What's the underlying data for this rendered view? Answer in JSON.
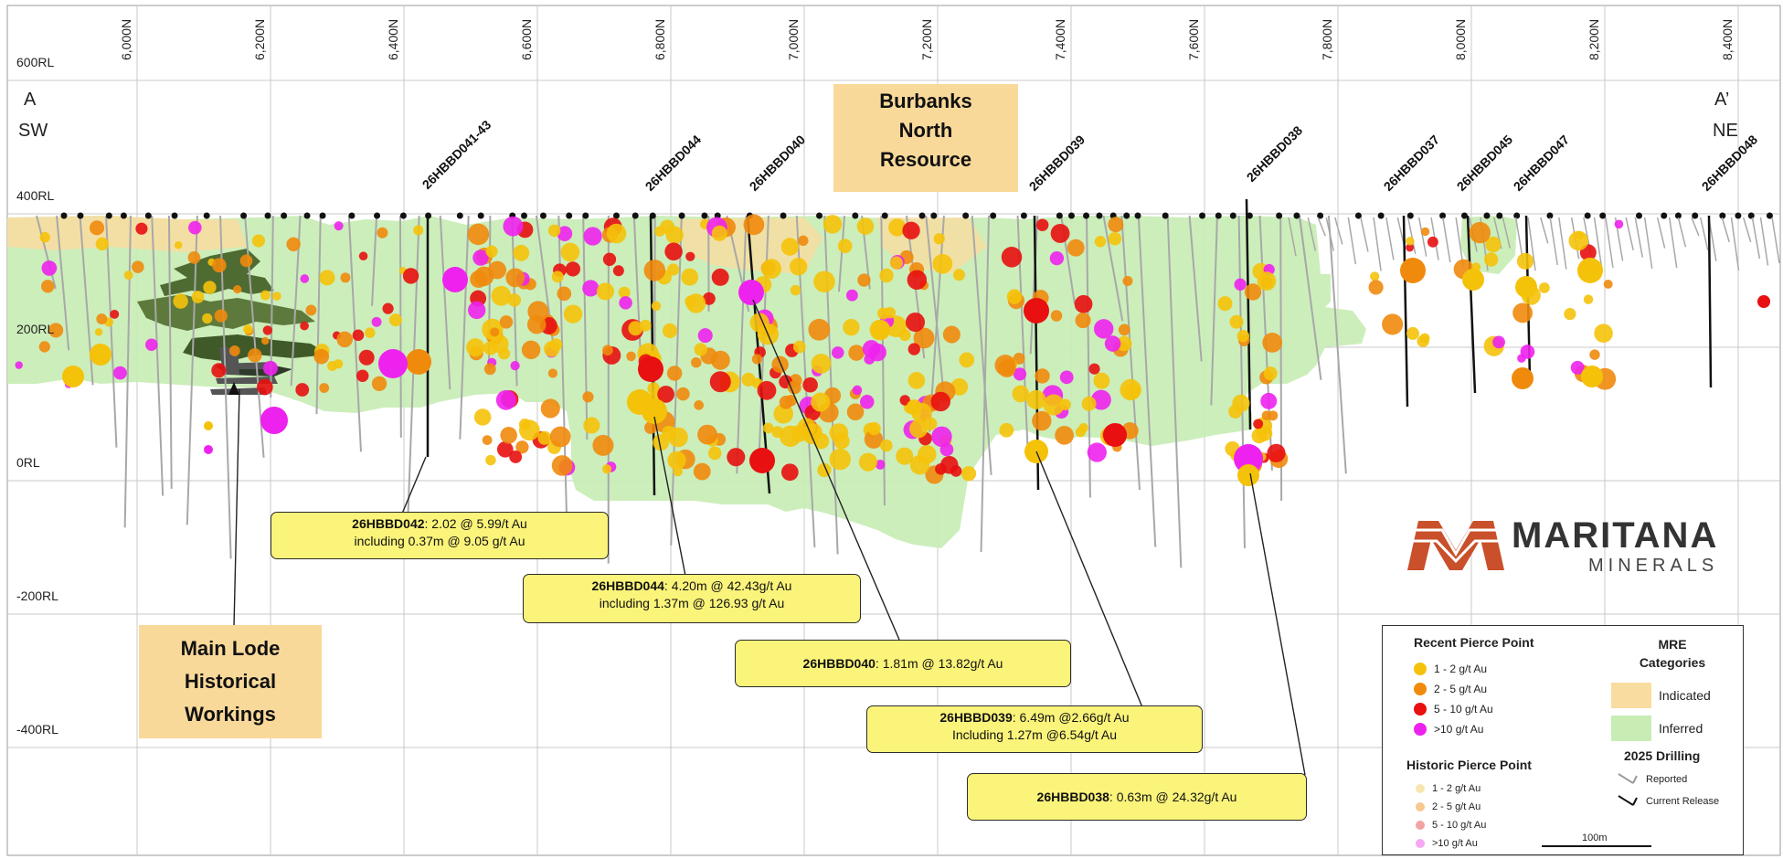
{
  "section": {
    "rl_labels": [
      "600RL",
      "400RL",
      "200RL",
      "0RL",
      "-200RL",
      "-400RL"
    ],
    "northings": [
      "6,000N",
      "6,200N",
      "6,400N",
      "6,600N",
      "6,800N",
      "7,000N",
      "7,200N",
      "7,400N",
      "7,600N",
      "7,800N",
      "8,000N",
      "8,200N",
      "8,400N"
    ],
    "corner_left": [
      "A",
      "SW"
    ],
    "corner_right": [
      "A’",
      "NE"
    ],
    "resource_label": [
      "Burbanks",
      "North",
      "Resource"
    ],
    "workings_label": [
      "Main Lode",
      "Historical",
      "Workings"
    ],
    "drill_holes": [
      "26HBBD041-43",
      "26HBBD044",
      "26HBBD040",
      "26HBBD039",
      "26HBBD038",
      "26HBBD037",
      "26HBBD045",
      "26HBBD047",
      "26HBBD048"
    ]
  },
  "callouts": [
    {
      "hole": "26HBBD042",
      "line1": ": 2.02 @ 5.99/t Au",
      "line2": "including 0.37m @ 9.05 g/t Au"
    },
    {
      "hole": "26HBBD044",
      "line1": ": 4.20m @ 42.43g/t Au",
      "line2": "including 1.37m @ 126.93 g/t Au"
    },
    {
      "hole": "26HBBD040",
      "line1": ": 1.81m @ 13.82g/t Au",
      "line2": ""
    },
    {
      "hole": "26HBBD039",
      "line1": ": 6.49m @2.66g/t Au",
      "line2": "Including 1.27m @6.54g/t Au"
    },
    {
      "hole": "26HBBD038",
      "line1": ": 0.63m @ 24.32g/t Au",
      "line2": ""
    }
  ],
  "logo": {
    "name": "MARITANA",
    "sub": "MINERALS"
  },
  "legend": {
    "recent_title": "Recent Pierce Point",
    "recent_items": [
      {
        "label": "1 - 2 g/t Au",
        "color": "#f5c20a"
      },
      {
        "label": "2 - 5 g/t Au",
        "color": "#f08a0c"
      },
      {
        "label": "5 - 10 g/t Au",
        "color": "#e81010"
      },
      {
        "label": ">10 g/t Au",
        "color": "#ee22ee"
      }
    ],
    "historic_title": "Historic Pierce Point",
    "historic_items": [
      {
        "label": "1 - 2 g/t Au",
        "color": "#f8e6b0"
      },
      {
        "label": "2 - 5 g/t Au",
        "color": "#f6c890"
      },
      {
        "label": "5 - 10 g/t Au",
        "color": "#f3a3a3"
      },
      {
        "label": ">10 g/t Au",
        "color": "#f4a8f4"
      }
    ],
    "mre_title": [
      "MRE",
      "Categories"
    ],
    "mre_items": [
      {
        "label": "Indicated",
        "color": "#f9dca0"
      },
      {
        "label": "Inferred",
        "color": "#c7ecb4"
      }
    ],
    "drilling_title": "2025 Drilling",
    "drilling_items": [
      {
        "label": "Reported",
        "color": "#9a9a9a"
      },
      {
        "label": "Current Release",
        "color": "#111111"
      }
    ],
    "scale_label": "100m"
  },
  "colors": {
    "inferred": "#c7ecb4",
    "indicated": "#f9dca0",
    "callout": "#fbf47a",
    "recent_1_2": "#f5c20a",
    "recent_2_5": "#f08a0c",
    "recent_5_10": "#e81010",
    "recent_gt10": "#ee22ee",
    "workings": "#4e6b32"
  }
}
